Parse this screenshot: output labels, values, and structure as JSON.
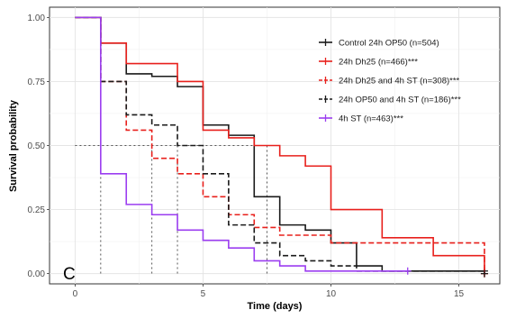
{
  "chart_data": {
    "type": "line",
    "step": true,
    "panel_label": "C",
    "xlabel": "Time (days)",
    "ylabel": "Survival probability",
    "xlim": [
      -1,
      16.6
    ],
    "ylim": [
      -0.04,
      1.04
    ],
    "xticks": [
      0,
      5,
      10,
      15
    ],
    "yticks": [
      0.0,
      0.25,
      0.5,
      0.75,
      1.0
    ],
    "ytick_labels": [
      "0.00",
      "0.25",
      "0.50",
      "0.75",
      "1.00"
    ],
    "grid": true,
    "legend_position": "top-right",
    "median_line_y": 0.5,
    "series": [
      {
        "name": "Control 24h OP50 (n=504)",
        "color": "#1a1a1a",
        "dash": "solid",
        "x": [
          0,
          1,
          2,
          3,
          4,
          5,
          6,
          7,
          8,
          9,
          10,
          11,
          12,
          16
        ],
        "y": [
          1.0,
          0.9,
          0.78,
          0.77,
          0.73,
          0.58,
          0.54,
          0.3,
          0.19,
          0.17,
          0.12,
          0.03,
          0.01,
          0.01
        ],
        "median_x": 7.5
      },
      {
        "name": "24h Dh25 (n=466)***",
        "color": "#e8201c",
        "dash": "solid",
        "x": [
          0,
          1,
          2,
          4,
          5,
          6,
          7,
          8,
          9,
          10,
          12,
          14,
          16
        ],
        "y": [
          1.0,
          0.9,
          0.82,
          0.75,
          0.56,
          0.53,
          0.5,
          0.46,
          0.42,
          0.25,
          0.14,
          0.07,
          0.0
        ],
        "median_x": null
      },
      {
        "name": "24h Dh25 and 4h ST (n=308)***",
        "color": "#e8201c",
        "dash": "dashed",
        "x": [
          0,
          1,
          2,
          3,
          4,
          5,
          6,
          7,
          8,
          10,
          16
        ],
        "y": [
          1.0,
          0.75,
          0.56,
          0.45,
          0.39,
          0.3,
          0.23,
          0.18,
          0.15,
          0.12,
          0.0
        ],
        "median_x": 3
      },
      {
        "name": "24h OP50 and 4h ST (n=186)***",
        "color": "#1a1a1a",
        "dash": "dashed",
        "x": [
          0,
          1,
          2,
          3,
          4,
          5,
          6,
          7,
          8,
          9,
          10,
          11,
          16
        ],
        "y": [
          1.0,
          0.75,
          0.62,
          0.58,
          0.5,
          0.39,
          0.19,
          0.12,
          0.07,
          0.05,
          0.03,
          0.01,
          0.0
        ],
        "median_x": 4
      },
      {
        "name": "4h ST (n=463)***",
        "color": "#9b3df0",
        "dash": "solid",
        "x": [
          0,
          1,
          2,
          3,
          4,
          5,
          6,
          7,
          8,
          9,
          10,
          13
        ],
        "y": [
          1.0,
          0.39,
          0.27,
          0.23,
          0.17,
          0.13,
          0.1,
          0.05,
          0.03,
          0.01,
          0.01,
          0.01
        ],
        "median_x": 1
      }
    ]
  }
}
